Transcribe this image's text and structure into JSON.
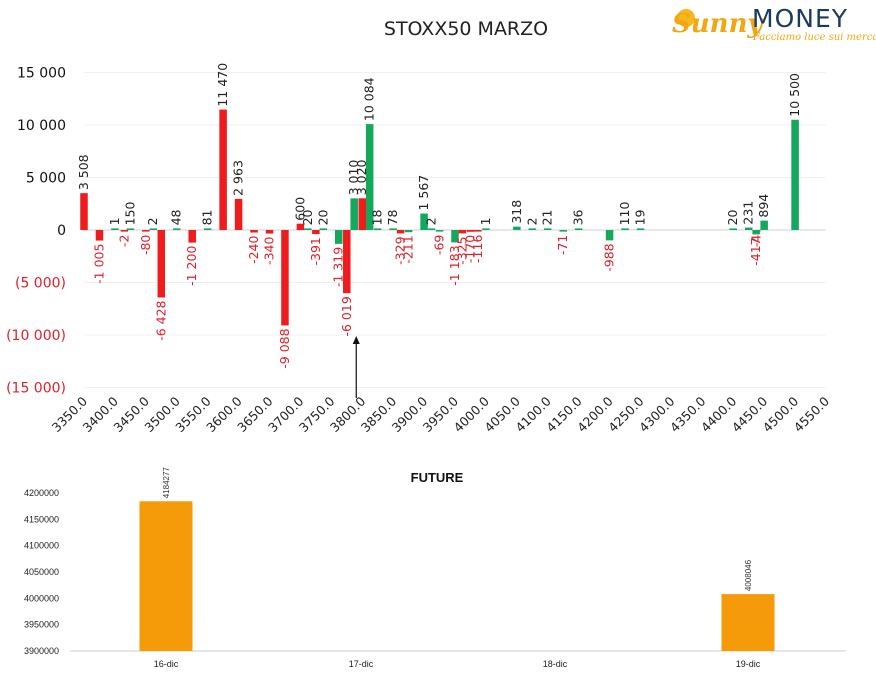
{
  "logo": {
    "part1": "Sunny",
    "part2": "MONEY",
    "tagline": "Facciamo luce sui mercati"
  },
  "colors": {
    "positive": "#13a85c",
    "negative": "#ee1c1c",
    "future": "#f59b0a",
    "neg_label": "#e0202a",
    "pos_label": "#222222"
  },
  "chart_data": [
    {
      "type": "bar",
      "title": "STOXX50 MARZO",
      "ylim": [
        -15000,
        15000
      ],
      "yticks": [
        15000,
        10000,
        5000,
        0,
        -5000,
        -10000,
        -15000
      ],
      "ytick_labels": [
        "15 000",
        "10 000",
        "5 000",
        "0",
        "(5 000)",
        "(10 000)",
        "(15 000)"
      ],
      "xlim": [
        3350,
        4550
      ],
      "xticks": [
        "3350.0",
        "3400.0",
        "3450.0",
        "3500.0",
        "3550.0",
        "3600.0",
        "3650.0",
        "3700.0",
        "3750.0",
        "3800.0",
        "3850.0",
        "3900.0",
        "3950.0",
        "4000.0",
        "4050.0",
        "4100.0",
        "4150.0",
        "4200.0",
        "4250.0",
        "4300.0",
        "4350.0",
        "4400.0",
        "4450.0",
        "4500.0",
        "4550.0"
      ],
      "annotation_arrow_x": 3800,
      "points": [
        {
          "x": 3350,
          "v": 3508,
          "label": "3 508",
          "c": "neg"
        },
        {
          "x": 3375,
          "v": -1005,
          "label": "-1 005",
          "c": "neg"
        },
        {
          "x": 3400,
          "v": 1,
          "label": "1",
          "c": "pos"
        },
        {
          "x": 3425,
          "v": 150,
          "label": "150",
          "c": "pos"
        },
        {
          "x": 3425,
          "v": -2,
          "label": "-2",
          "c": "neg",
          "dx": -6
        },
        {
          "x": 3450,
          "v": -80,
          "label": "-80",
          "c": "neg"
        },
        {
          "x": 3462,
          "v": 2,
          "label": "2",
          "c": "pos"
        },
        {
          "x": 3475,
          "v": -6428,
          "label": "-6 428",
          "c": "neg"
        },
        {
          "x": 3500,
          "v": 48,
          "label": "48",
          "c": "pos"
        },
        {
          "x": 3525,
          "v": -1200,
          "label": "-1 200",
          "c": "neg"
        },
        {
          "x": 3550,
          "v": 81,
          "label": "81",
          "c": "pos"
        },
        {
          "x": 3575,
          "v": 11470,
          "label": "11 470",
          "c": "neg"
        },
        {
          "x": 3600,
          "v": 2963,
          "label": "2 963",
          "c": "neg"
        },
        {
          "x": 3625,
          "v": -240,
          "label": "-240",
          "c": "neg"
        },
        {
          "x": 3650,
          "v": -340,
          "label": "-340",
          "c": "neg"
        },
        {
          "x": 3675,
          "v": -9088,
          "label": "-9 088",
          "c": "neg"
        },
        {
          "x": 3700,
          "v": 600,
          "label": "600",
          "c": "neg"
        },
        {
          "x": 3712,
          "v": 20,
          "label": "20",
          "c": "pos"
        },
        {
          "x": 3725,
          "v": -391,
          "label": "-391",
          "c": "neg"
        },
        {
          "x": 3737,
          "v": 20,
          "label": "20",
          "c": "pos"
        },
        {
          "x": 3762,
          "v": -1319,
          "label": "-1 319",
          "c": "pos"
        },
        {
          "x": 3775,
          "v": -6019,
          "label": "-6 019",
          "c": "neg"
        },
        {
          "x": 3787,
          "v": 3010,
          "label": "3 010",
          "c": "pos"
        },
        {
          "x": 3800,
          "v": 3020,
          "label": "3 020",
          "c": "neg"
        },
        {
          "x": 3812,
          "v": 10084,
          "label": "10 084",
          "c": "pos"
        },
        {
          "x": 3825,
          "v": 18,
          "label": "18",
          "c": "pos"
        },
        {
          "x": 3850,
          "v": 78,
          "label": "78",
          "c": "pos"
        },
        {
          "x": 3862,
          "v": -329,
          "label": "-329",
          "c": "neg"
        },
        {
          "x": 3875,
          "v": -211,
          "label": "-211",
          "c": "pos"
        },
        {
          "x": 3900,
          "v": 1567,
          "label": "1 567",
          "c": "pos"
        },
        {
          "x": 3912,
          "v": 2,
          "label": "2",
          "c": "pos"
        },
        {
          "x": 3925,
          "v": -69,
          "label": "-69",
          "c": "pos"
        },
        {
          "x": 3950,
          "v": -1183,
          "label": "-1 183",
          "c": "pos"
        },
        {
          "x": 3962,
          "v": -325,
          "label": "-325",
          "c": "neg"
        },
        {
          "x": 3975,
          "v": -170,
          "label": "-170",
          "c": "neg"
        },
        {
          "x": 3987,
          "v": -116,
          "label": "-116",
          "c": "neg"
        },
        {
          "x": 4000,
          "v": 1,
          "label": "1",
          "c": "pos"
        },
        {
          "x": 4050,
          "v": 318,
          "label": "318",
          "c": "pos"
        },
        {
          "x": 4075,
          "v": 2,
          "label": "2",
          "c": "pos"
        },
        {
          "x": 4100,
          "v": 21,
          "label": "21",
          "c": "pos"
        },
        {
          "x": 4125,
          "v": -71,
          "label": "-71",
          "c": "pos"
        },
        {
          "x": 4150,
          "v": 36,
          "label": "36",
          "c": "pos"
        },
        {
          "x": 4200,
          "v": -988,
          "label": "-988",
          "c": "pos"
        },
        {
          "x": 4225,
          "v": 110,
          "label": "110",
          "c": "pos"
        },
        {
          "x": 4250,
          "v": 19,
          "label": "19",
          "c": "pos"
        },
        {
          "x": 4400,
          "v": 20,
          "label": "20",
          "c": "pos"
        },
        {
          "x": 4425,
          "v": 231,
          "label": "231",
          "c": "pos"
        },
        {
          "x": 4425,
          "v": -4,
          "label": "-4",
          "c": "neg",
          "dx": 8
        },
        {
          "x": 4437,
          "v": -417,
          "label": "-417",
          "c": "pos"
        },
        {
          "x": 4450,
          "v": 894,
          "label": "894",
          "c": "pos"
        },
        {
          "x": 4500,
          "v": 10500,
          "label": "10 500",
          "c": "pos"
        }
      ]
    },
    {
      "type": "bar",
      "title": "FUTURE",
      "categories": [
        "16-dic",
        "17-dic",
        "18-dic",
        "19-dic"
      ],
      "values": [
        4184277,
        null,
        null,
        4008046
      ],
      "value_labels": [
        "4184277",
        "",
        "",
        "4008046"
      ],
      "ylim": [
        3900000,
        4200000
      ],
      "yticks": [
        "4200000",
        "4150000",
        "4100000",
        "4050000",
        "4000000",
        "3950000",
        "3900000"
      ]
    }
  ]
}
